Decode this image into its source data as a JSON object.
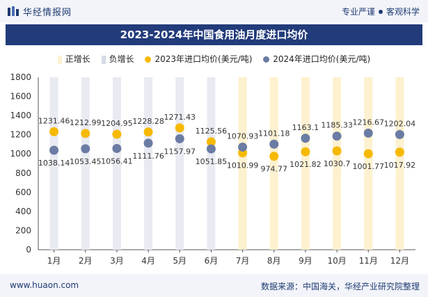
{
  "header": {
    "brand": "华经情报网",
    "tagline_left": "专业严谨",
    "tagline_right": "客观科学"
  },
  "footer": {
    "url": "www.huaon.com",
    "source": "数据来源：中国海关，华经产业研究院整理"
  },
  "colors": {
    "pos_bar": "#fdf1d0",
    "neg_bar": "#e9ebf2",
    "series_2023": "#f6b900",
    "series_2024": "#6b7ca4",
    "title_bg": "#223b7a"
  },
  "chart_data": {
    "type": "line",
    "title": "2023-2024年中国食用油月度进口均价",
    "xlabel": "",
    "ylabel": "",
    "ylim": [
      0,
      1800
    ],
    "yticks": [
      0,
      200,
      400,
      600,
      800,
      1000,
      1200,
      1400,
      1600,
      1800
    ],
    "grid": false,
    "legend_position": "top",
    "categories": [
      "1月",
      "2月",
      "3月",
      "4月",
      "5月",
      "6月",
      "7月",
      "8月",
      "9月",
      "10月",
      "11月",
      "12月"
    ],
    "legend": [
      "正增长",
      "负增长",
      "2023年进口均价(美元/吨)",
      "2024年进口均价(美元/吨)"
    ],
    "series": [
      {
        "name": "2023年进口均价(美元/吨)",
        "values": [
          1231.46,
          1212.99,
          1204.95,
          1228.28,
          1271.43,
          1125.56,
          1010.99,
          974.77,
          1021.82,
          1030.7,
          1001.77,
          1017.92
        ],
        "labels": [
          "1231.46",
          "1212.99",
          "1204.95",
          "1228.28",
          "1271.43",
          "1125.56",
          "1010.99",
          "974.77",
          "1021.82",
          "1030.7",
          "1001.77",
          "1017.92"
        ]
      },
      {
        "name": "2024年进口均价(美元/吨)",
        "values": [
          1038.14,
          1053.45,
          1056.41,
          1111.76,
          1157.97,
          1051.85,
          1070.93,
          1101.18,
          1163.1,
          1185.33,
          1216.67,
          1202.04
        ],
        "labels": [
          "1038.14",
          "1053.45",
          "1056.41",
          "1111.76",
          "1157.97",
          "1051.85",
          "1070.93",
          "1101.18",
          "1163.1",
          "1185.33",
          "1216.67",
          "1202.04"
        ]
      }
    ]
  }
}
